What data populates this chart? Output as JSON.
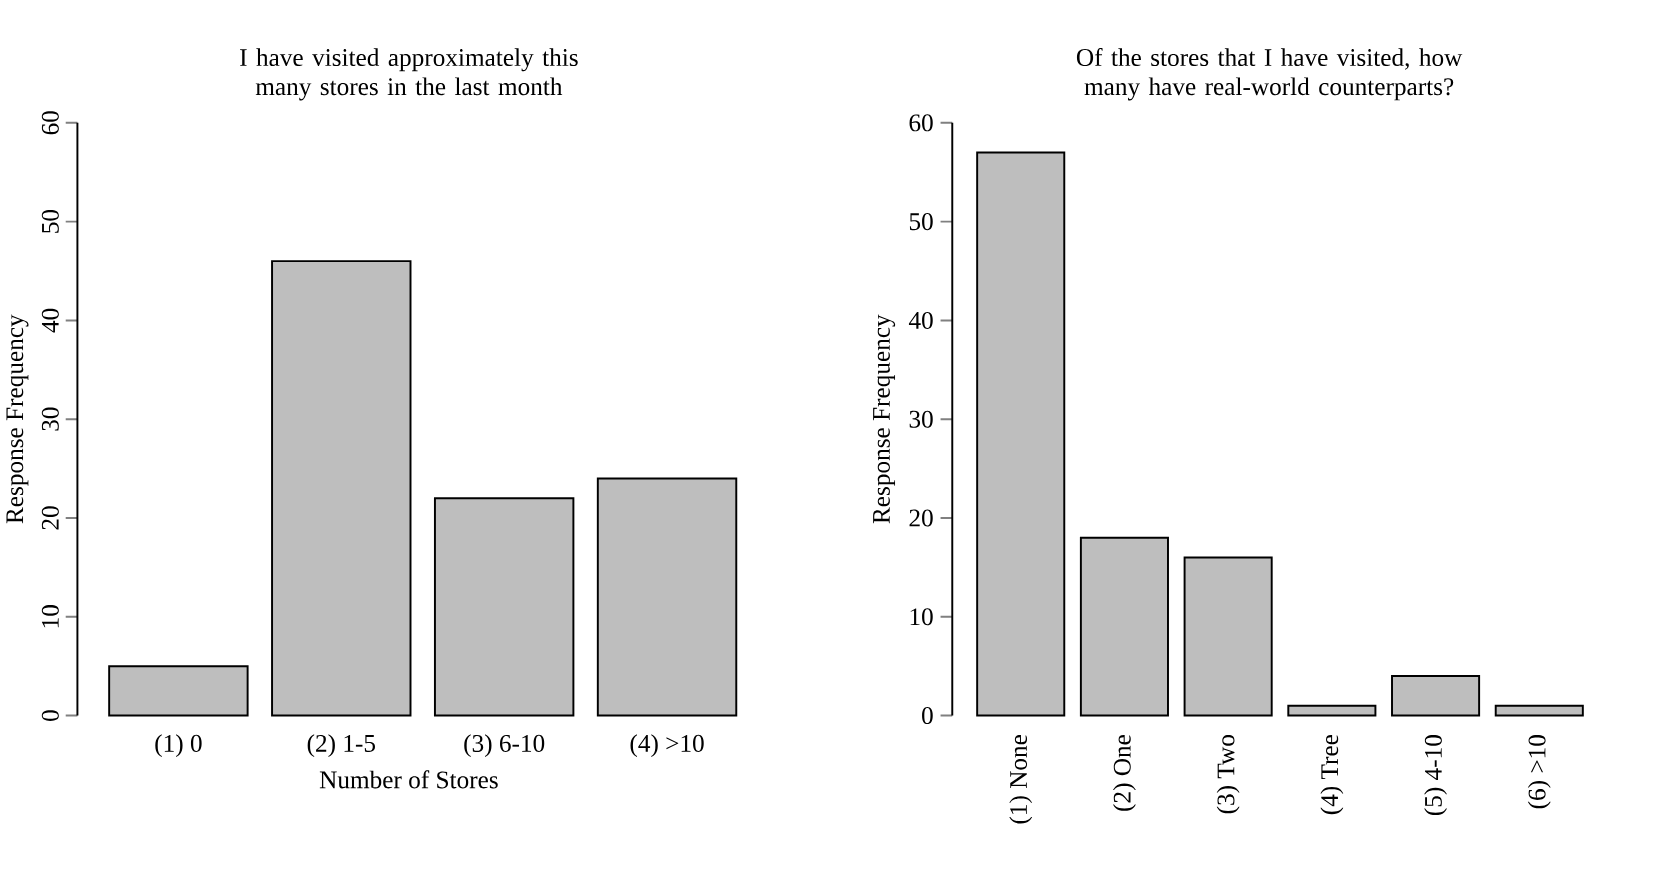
{
  "chart_data": [
    {
      "type": "bar",
      "title": "I have visited approximately this many stores in the last month",
      "xlabel": "Number of Stores",
      "ylabel": "Response Frequency",
      "categories": [
        "(1) 0",
        "(2) 1-5",
        "(3) 6-10",
        "(4) >10"
      ],
      "values": [
        5,
        46,
        22,
        24
      ],
      "color": "#bebebe",
      "ylim": [
        0,
        60
      ],
      "yticks": [
        0,
        10,
        20,
        30,
        40,
        50,
        60
      ]
    },
    {
      "type": "bar",
      "title": "Of the stores that I have visited, how many have real-world counterparts?",
      "ylabel": "Response Frequency",
      "categories": [
        "(1) None",
        "(2) One",
        "(3) Two",
        "(4) Tree",
        "(5) 4-10",
        "(6) >10"
      ],
      "values": [
        57,
        18,
        16,
        1,
        4,
        1
      ],
      "color": "#bebebe",
      "ylim": [
        0,
        60
      ],
      "yticks": [
        0,
        10,
        20,
        30,
        40,
        50,
        60
      ]
    }
  ]
}
